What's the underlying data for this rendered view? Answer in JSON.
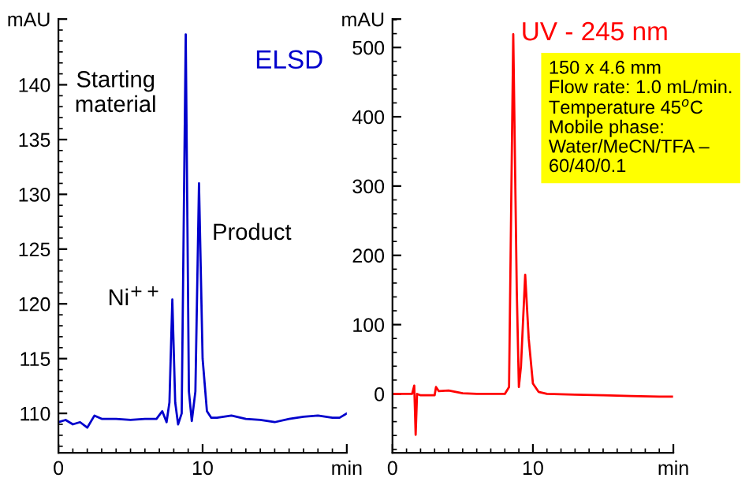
{
  "chart_data": [
    {
      "type": "line",
      "title": "ELSD",
      "x": [
        0,
        0.5,
        1,
        1.5,
        2,
        2.5,
        3,
        4,
        5,
        6,
        6.8,
        7.2,
        7.5,
        7.7,
        7.9,
        8.1,
        8.3,
        8.55,
        8.83,
        9.05,
        9.25,
        9.5,
        9.75,
        10.0,
        10.3,
        10.6,
        11,
        12,
        13,
        14,
        15,
        16,
        17,
        18,
        19,
        19.5,
        20
      ],
      "series": [
        {
          "color": "#0000cc",
          "values": [
            109.2,
            109.4,
            109.0,
            109.2,
            108.7,
            109.8,
            109.5,
            109.5,
            109.4,
            109.5,
            109.5,
            110.2,
            109.2,
            111,
            120.4,
            111,
            109.0,
            110,
            144.6,
            112,
            109.3,
            112,
            131.0,
            115,
            110.2,
            109.6,
            109.6,
            109.8,
            109.5,
            109.4,
            109.2,
            109.5,
            109.7,
            109.8,
            109.6,
            109.6,
            110.0
          ]
        }
      ],
      "xlim": [
        0,
        20
      ],
      "xticks": [
        0,
        10,
        {
          "value": 20,
          "label": "min"
        }
      ],
      "ylim": [
        106.4,
        146
      ],
      "yticks": [
        110,
        115,
        120,
        125,
        130,
        135,
        140,
        {
          "value": 146,
          "label": "mAU"
        }
      ],
      "annotations": [
        {
          "text": "Ni$^{++}$",
          "x": 7.9,
          "y": 120.4
        },
        {
          "text": "Starting\nmaterial",
          "x": 8.83,
          "y": 144.6
        },
        {
          "text": "Product",
          "x": 9.75,
          "y": 131.0
        }
      ],
      "grid": false,
      "legend": false,
      "marker": "none",
      "line_style": "solid"
    },
    {
      "type": "line",
      "title": "UV - 245 nm",
      "x": [
        0,
        1.4,
        1.55,
        1.65,
        1.75,
        2,
        3,
        3.1,
        3.3,
        4,
        5,
        6,
        7,
        8.0,
        8.3,
        8.6,
        8.85,
        9.0,
        9.15,
        9.45,
        9.7,
        10.0,
        10.4,
        11,
        13,
        15,
        17,
        19,
        19.9
      ],
      "series": [
        {
          "color": "#ff0000",
          "values": [
            0,
            0,
            12,
            -59,
            0,
            -2,
            -2,
            10,
            4,
            5,
            1,
            0,
            0,
            0,
            10,
            519,
            150,
            10,
            40,
            172,
            80,
            15,
            3,
            0,
            -1,
            -2,
            -3,
            -4,
            -4
          ]
        }
      ],
      "xlim": [
        0,
        20
      ],
      "xticks": [
        0,
        10,
        {
          "value": 20,
          "label": "min"
        }
      ],
      "ylim": [
        -85,
        541
      ],
      "yticks": [
        0,
        100,
        200,
        300,
        400,
        500,
        {
          "value": 541,
          "label": "mAU"
        }
      ],
      "annotations": [
        "150 x 4.6 mm\nFlow rate: 1.0 mL/min.\nTemperature 45$^{o}$C\nMobile phase:\nWater/MeCN/TFA –\n60/40/0.1"
      ],
      "grid": false,
      "legend": false,
      "marker": "none",
      "line_style": "solid"
    }
  ]
}
